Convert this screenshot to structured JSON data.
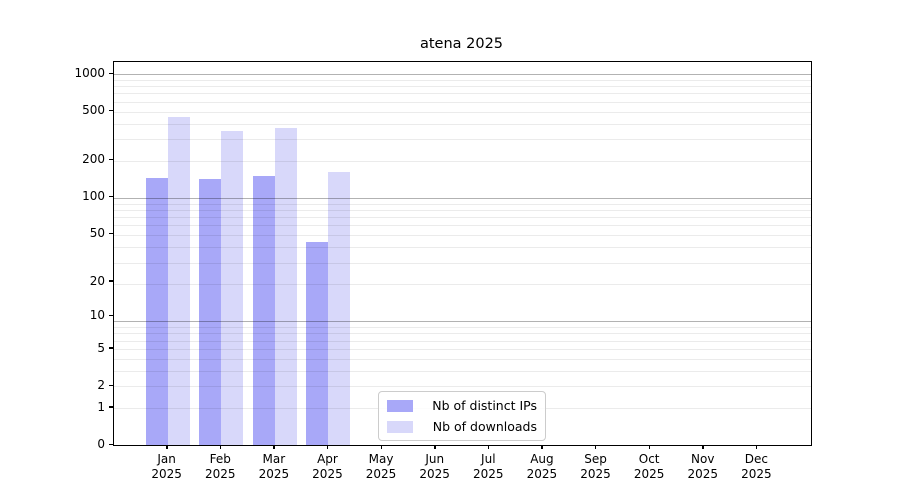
{
  "chart_data": {
    "type": "bar",
    "title": "atena 2025",
    "categories": [
      "Jan 2025",
      "Feb 2025",
      "Mar 2025",
      "Apr 2025",
      "May 2025",
      "Jun 2025",
      "Jul 2025",
      "Aug 2025",
      "Sep 2025",
      "Oct 2025",
      "Nov 2025",
      "Dec 2025"
    ],
    "series": [
      {
        "name": "Nb of distinct IPs",
        "color": "#a8a8f8",
        "values": [
          145,
          140,
          150,
          43,
          0,
          0,
          0,
          0,
          0,
          0,
          0,
          0
        ]
      },
      {
        "name": "Nb of downloads",
        "color": "#d8d8fa",
        "values": [
          450,
          345,
          370,
          160,
          0,
          0,
          0,
          0,
          0,
          0,
          0,
          0
        ]
      }
    ],
    "yscale": "log10(value+1)",
    "yticks": [
      0,
      1,
      2,
      5,
      10,
      20,
      50,
      100,
      200,
      500,
      1000
    ],
    "ylim": [
      0,
      1258
    ],
    "xlabel": "",
    "ylabel": "",
    "grid": "both",
    "legend_position": "lower-center"
  },
  "colors": {
    "background": "#ffffff",
    "spine": "#000000",
    "grid_major": "#b3b3b3",
    "grid_minor": "#ebebeb",
    "legend_border": "#cccccc"
  }
}
